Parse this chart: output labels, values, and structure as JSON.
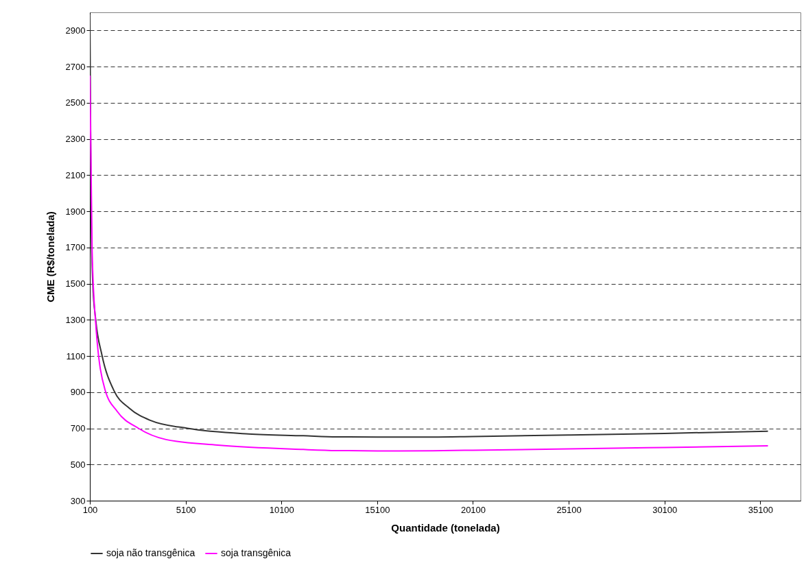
{
  "chart_data": {
    "type": "line",
    "xlabel": "Quantidade (tonelada)",
    "ylabel": "CME (R$/tonelada)",
    "xlim": [
      100,
      37200
    ],
    "xticks": [
      100,
      5100,
      10100,
      15100,
      20100,
      25100,
      30100,
      35100
    ],
    "ylim": [
      300,
      3000
    ],
    "yticks": [
      300,
      500,
      700,
      900,
      1100,
      1300,
      1500,
      1700,
      1900,
      2100,
      2300,
      2500,
      2700,
      2900
    ],
    "grid": "y",
    "legend": "bottom",
    "marker": "none",
    "line_style": "solid",
    "series": [
      {
        "name": "soja não transgênica",
        "color": "#333333",
        "x": [
          100,
          171,
          250,
          407,
          729,
          1364,
          2163,
          3279,
          5193,
          8386,
          11243,
          13000,
          15100,
          18000,
          20100,
          25100,
          30100,
          35500
        ],
        "values": [
          2990,
          1851,
          1505,
          1298,
          1106,
          907,
          811,
          743,
          700,
          669,
          659,
          653,
          652,
          652,
          655,
          663,
          672,
          684
        ]
      },
      {
        "name": "soja transgênica",
        "color": "#ff00ff",
        "x": [
          100,
          218,
          407,
          886,
          1525,
          2636,
          4075,
          6779,
          11243,
          13000,
          15100,
          18000,
          20100,
          25100,
          30100,
          35500
        ],
        "values": [
          2650,
          1679,
          1279,
          915,
          794,
          700,
          638,
          607,
          583,
          577,
          575,
          576,
          579,
          586,
          594,
          603
        ]
      }
    ]
  }
}
